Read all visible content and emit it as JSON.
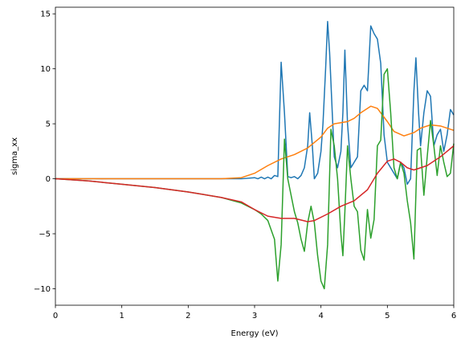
{
  "chart_data": {
    "type": "line",
    "title": "",
    "xlabel": "Energy (eV)",
    "ylabel": "sigma_xx",
    "xlim": [
      0,
      6
    ],
    "ylim": [
      -11.5,
      15.6
    ],
    "xticks": [
      0,
      1,
      2,
      3,
      4,
      5,
      6
    ],
    "xtick_labels": [
      "0",
      "1",
      "2",
      "3",
      "4",
      "5",
      "6"
    ],
    "yticks": [
      -10,
      -5,
      0,
      5,
      10,
      15
    ],
    "ytick_labels": [
      "−10",
      "−5",
      "0",
      "5",
      "10",
      "15"
    ],
    "grid": false,
    "legend": "none",
    "series": [
      {
        "color": "#1f77b4",
        "points": [
          [
            0,
            0
          ],
          [
            0.5,
            0
          ],
          [
            1,
            0
          ],
          [
            1.5,
            0
          ],
          [
            2,
            0
          ],
          [
            2.5,
            0
          ],
          [
            2.8,
            0
          ],
          [
            3.0,
            0.1
          ],
          [
            3.05,
            0
          ],
          [
            3.1,
            0.15
          ],
          [
            3.15,
            0
          ],
          [
            3.2,
            0.15
          ],
          [
            3.25,
            0
          ],
          [
            3.3,
            0.3
          ],
          [
            3.35,
            0.2
          ],
          [
            3.4,
            10.6
          ],
          [
            3.45,
            6
          ],
          [
            3.5,
            0.2
          ],
          [
            3.55,
            0.1
          ],
          [
            3.6,
            0.2
          ],
          [
            3.65,
            0
          ],
          [
            3.7,
            0.3
          ],
          [
            3.75,
            1
          ],
          [
            3.8,
            3
          ],
          [
            3.83,
            6
          ],
          [
            3.87,
            3
          ],
          [
            3.9,
            0
          ],
          [
            3.95,
            0.5
          ],
          [
            4.0,
            2.5
          ],
          [
            4.03,
            5
          ],
          [
            4.07,
            10
          ],
          [
            4.1,
            14.3
          ],
          [
            4.13,
            11.5
          ],
          [
            4.17,
            6
          ],
          [
            4.2,
            2
          ],
          [
            4.25,
            1
          ],
          [
            4.3,
            2.5
          ],
          [
            4.33,
            6
          ],
          [
            4.36,
            11.7
          ],
          [
            4.4,
            5
          ],
          [
            4.45,
            1
          ],
          [
            4.5,
            1.5
          ],
          [
            4.55,
            2
          ],
          [
            4.6,
            8
          ],
          [
            4.65,
            8.5
          ],
          [
            4.7,
            8
          ],
          [
            4.75,
            13.9
          ],
          [
            4.8,
            13.2
          ],
          [
            4.85,
            12.7
          ],
          [
            4.9,
            10.5
          ],
          [
            4.95,
            4
          ],
          [
            5.0,
            1.5
          ],
          [
            5.05,
            1
          ],
          [
            5.1,
            0.5
          ],
          [
            5.15,
            0
          ],
          [
            5.2,
            1.5
          ],
          [
            5.25,
            1
          ],
          [
            5.3,
            -0.5
          ],
          [
            5.35,
            0
          ],
          [
            5.4,
            8
          ],
          [
            5.43,
            11
          ],
          [
            5.47,
            6
          ],
          [
            5.5,
            3
          ],
          [
            5.55,
            6
          ],
          [
            5.6,
            8
          ],
          [
            5.65,
            7.5
          ],
          [
            5.7,
            3
          ],
          [
            5.75,
            4
          ],
          [
            5.8,
            4.5
          ],
          [
            5.85,
            2.5
          ],
          [
            5.9,
            4
          ],
          [
            5.95,
            6.3
          ],
          [
            6.0,
            5.8
          ]
        ]
      },
      {
        "color": "#ff7f0e",
        "points": [
          [
            0,
            0
          ],
          [
            0.5,
            0
          ],
          [
            1,
            0
          ],
          [
            1.5,
            0
          ],
          [
            2,
            0
          ],
          [
            2.5,
            0
          ],
          [
            2.8,
            0.1
          ],
          [
            3.0,
            0.5
          ],
          [
            3.2,
            1.2
          ],
          [
            3.4,
            1.8
          ],
          [
            3.6,
            2.2
          ],
          [
            3.8,
            2.8
          ],
          [
            4.0,
            3.8
          ],
          [
            4.1,
            4.6
          ],
          [
            4.2,
            5.0
          ],
          [
            4.4,
            5.2
          ],
          [
            4.5,
            5.5
          ],
          [
            4.6,
            6.0
          ],
          [
            4.75,
            6.6
          ],
          [
            4.85,
            6.4
          ],
          [
            5.0,
            5.2
          ],
          [
            5.1,
            4.3
          ],
          [
            5.25,
            3.9
          ],
          [
            5.4,
            4.2
          ],
          [
            5.5,
            4.6
          ],
          [
            5.65,
            4.9
          ],
          [
            5.8,
            4.8
          ],
          [
            6.0,
            4.4
          ]
        ]
      },
      {
        "color": "#2ca02c",
        "points": [
          [
            0,
            0
          ],
          [
            0.5,
            -0.2
          ],
          [
            1,
            -0.5
          ],
          [
            1.5,
            -0.8
          ],
          [
            2,
            -1.2
          ],
          [
            2.5,
            -1.7
          ],
          [
            2.8,
            -2.2
          ],
          [
            3.0,
            -2.8
          ],
          [
            3.1,
            -3.2
          ],
          [
            3.2,
            -3.8
          ],
          [
            3.3,
            -5.5
          ],
          [
            3.35,
            -9.3
          ],
          [
            3.4,
            -6
          ],
          [
            3.45,
            3.6
          ],
          [
            3.5,
            0
          ],
          [
            3.55,
            -1.5
          ],
          [
            3.6,
            -3
          ],
          [
            3.65,
            -4
          ],
          [
            3.7,
            -5.5
          ],
          [
            3.75,
            -6.6
          ],
          [
            3.8,
            -4
          ],
          [
            3.85,
            -2.5
          ],
          [
            3.9,
            -4
          ],
          [
            3.95,
            -7
          ],
          [
            4.0,
            -9.3
          ],
          [
            4.05,
            -10
          ],
          [
            4.1,
            -6
          ],
          [
            4.15,
            4.5
          ],
          [
            4.2,
            3
          ],
          [
            4.25,
            0
          ],
          [
            4.3,
            -5
          ],
          [
            4.33,
            -7
          ],
          [
            4.36,
            -3
          ],
          [
            4.4,
            3
          ],
          [
            4.45,
            0
          ],
          [
            4.5,
            -2.5
          ],
          [
            4.55,
            -3
          ],
          [
            4.6,
            -6.5
          ],
          [
            4.65,
            -7.4
          ],
          [
            4.7,
            -2.8
          ],
          [
            4.75,
            -5.4
          ],
          [
            4.8,
            -3.7
          ],
          [
            4.85,
            3
          ],
          [
            4.9,
            3.5
          ],
          [
            4.95,
            9.5
          ],
          [
            5.0,
            10
          ],
          [
            5.05,
            6
          ],
          [
            5.1,
            1
          ],
          [
            5.15,
            0
          ],
          [
            5.2,
            1.5
          ],
          [
            5.25,
            0.5
          ],
          [
            5.3,
            -2
          ],
          [
            5.35,
            -4
          ],
          [
            5.4,
            -7.3
          ],
          [
            5.45,
            2.6
          ],
          [
            5.5,
            2.8
          ],
          [
            5.55,
            -1.5
          ],
          [
            5.6,
            2
          ],
          [
            5.65,
            5.3
          ],
          [
            5.7,
            3
          ],
          [
            5.75,
            0.3
          ],
          [
            5.8,
            3
          ],
          [
            5.85,
            1.5
          ],
          [
            5.9,
            0.2
          ],
          [
            5.95,
            0.5
          ],
          [
            6.0,
            3.2
          ]
        ]
      },
      {
        "color": "#d62728",
        "points": [
          [
            0,
            0
          ],
          [
            0.5,
            -0.2
          ],
          [
            1,
            -0.5
          ],
          [
            1.5,
            -0.8
          ],
          [
            2,
            -1.2
          ],
          [
            2.5,
            -1.7
          ],
          [
            2.8,
            -2.1
          ],
          [
            3.0,
            -2.8
          ],
          [
            3.2,
            -3.4
          ],
          [
            3.4,
            -3.6
          ],
          [
            3.6,
            -3.6
          ],
          [
            3.8,
            -3.9
          ],
          [
            3.9,
            -3.8
          ],
          [
            4.1,
            -3.2
          ],
          [
            4.3,
            -2.5
          ],
          [
            4.5,
            -2.0
          ],
          [
            4.7,
            -1.0
          ],
          [
            4.85,
            0.5
          ],
          [
            5.0,
            1.6
          ],
          [
            5.1,
            1.8
          ],
          [
            5.2,
            1.5
          ],
          [
            5.3,
            1.0
          ],
          [
            5.4,
            0.8
          ],
          [
            5.6,
            1.2
          ],
          [
            5.8,
            2.0
          ],
          [
            6.0,
            3.0
          ]
        ]
      }
    ]
  }
}
